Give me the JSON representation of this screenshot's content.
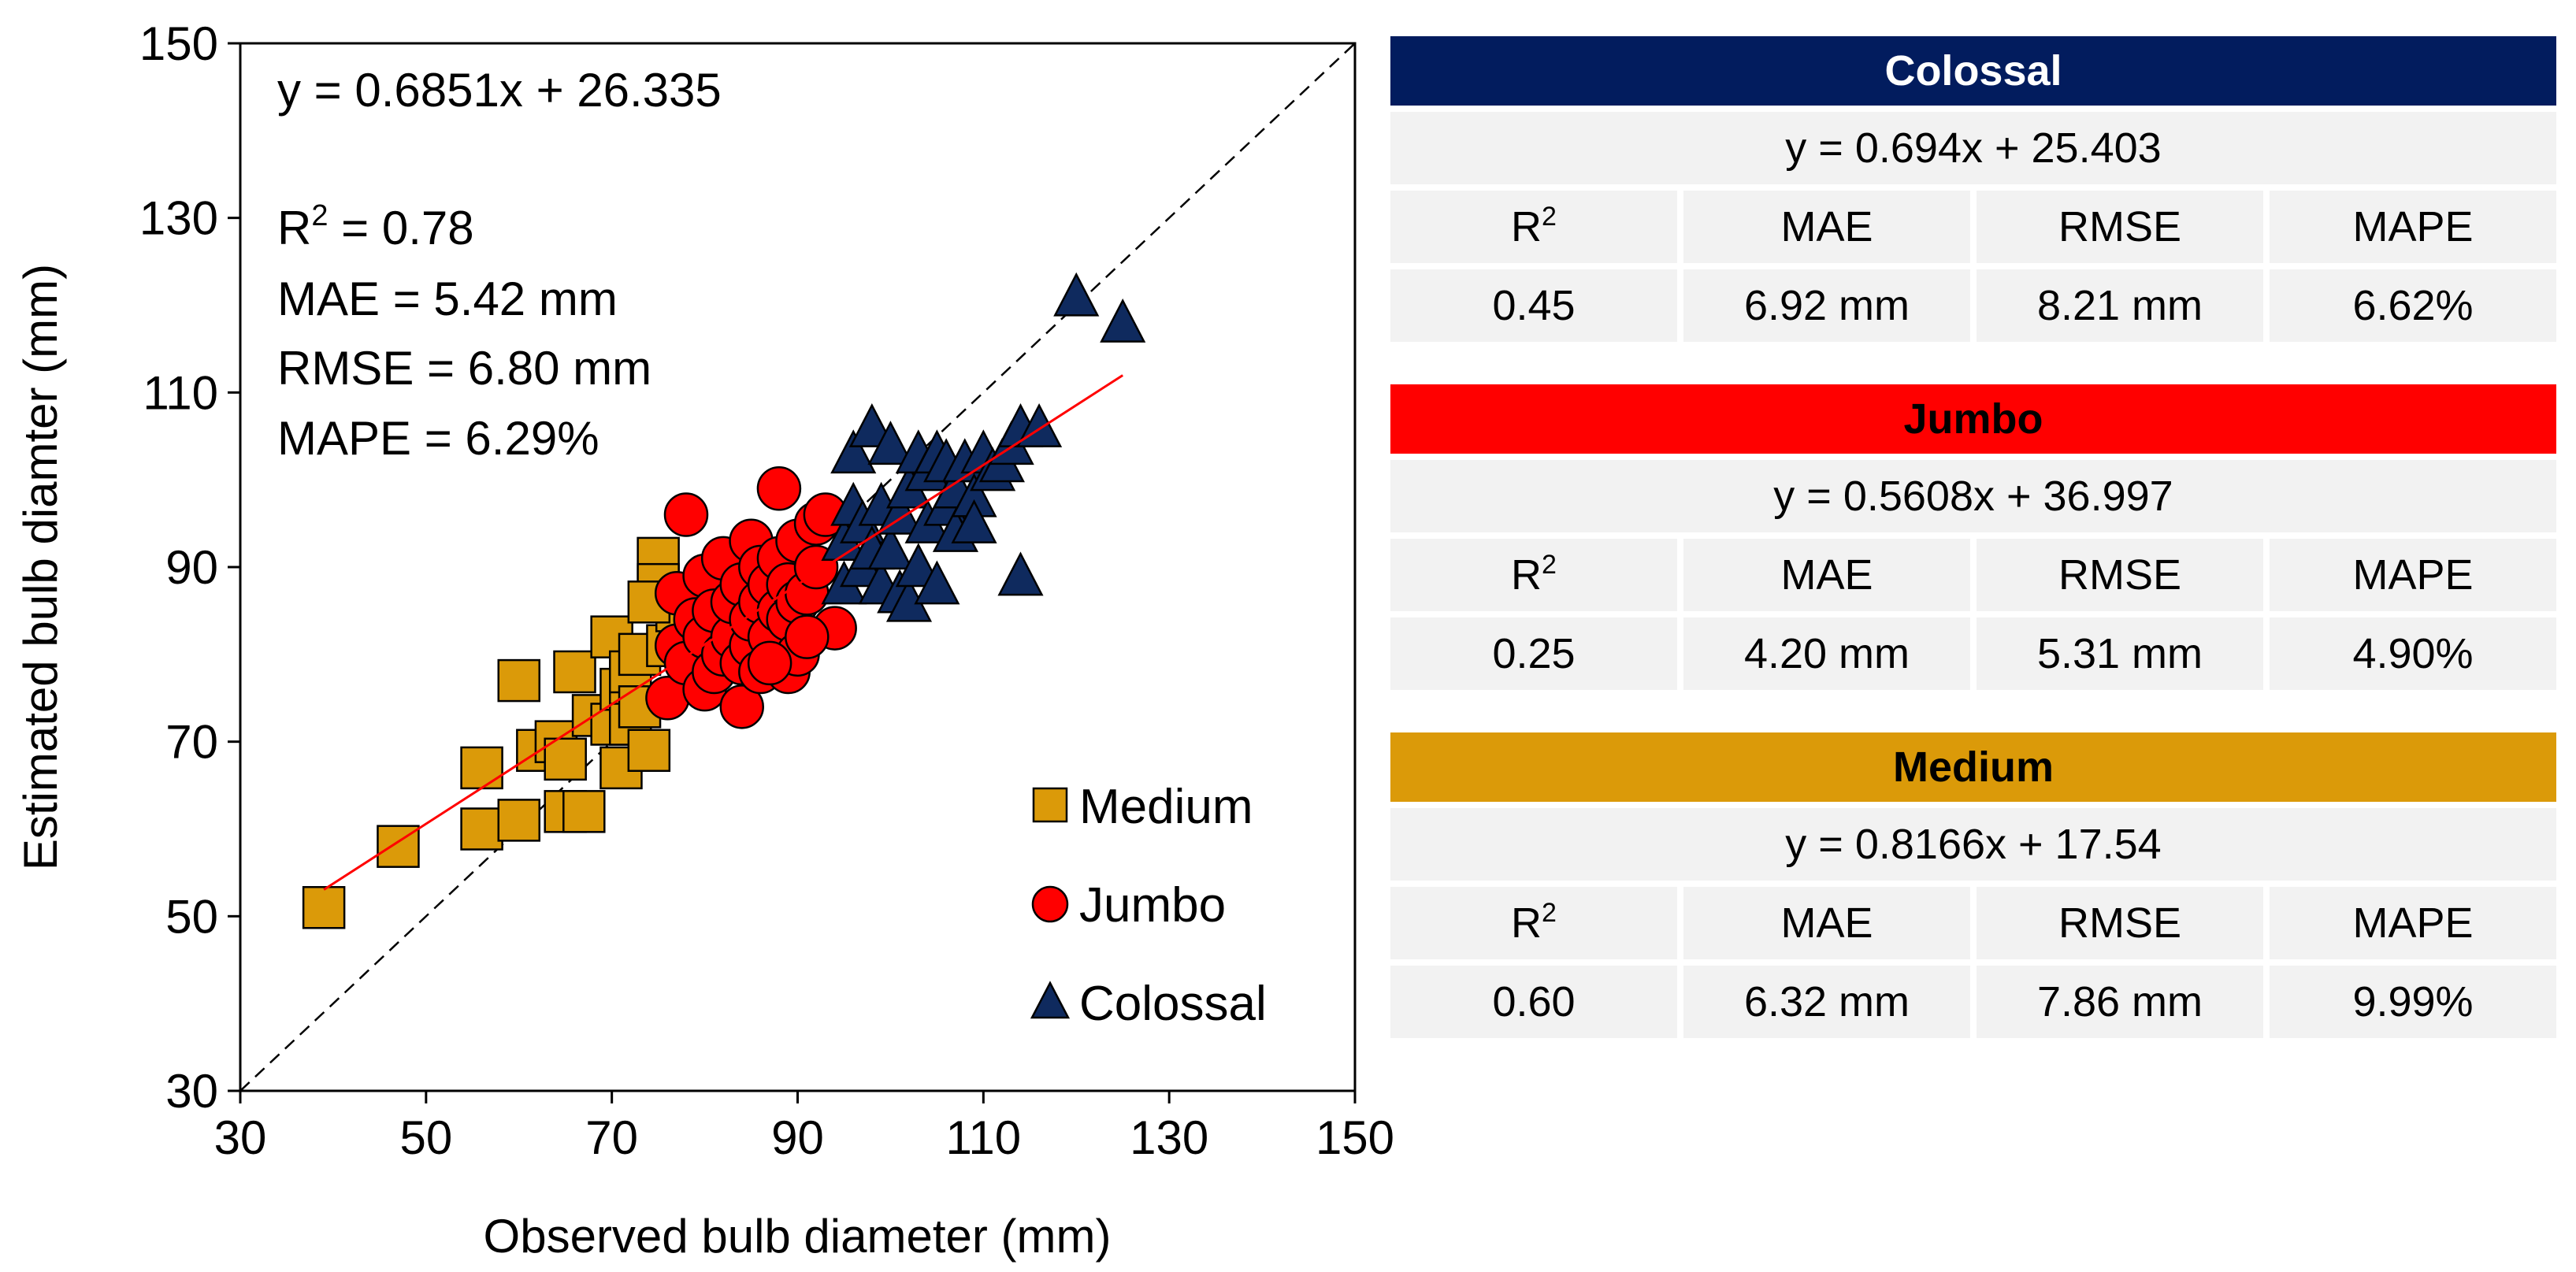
{
  "chart_data": {
    "type": "scatter",
    "xlabel": "Observed bulb diameter (mm)",
    "ylabel": "Estimated bulb diamter (mm)",
    "xlim": [
      30,
      150
    ],
    "ylim": [
      30,
      150
    ],
    "xticks": [
      30,
      50,
      70,
      90,
      110,
      130,
      150
    ],
    "yticks": [
      30,
      50,
      70,
      90,
      110,
      130,
      150
    ],
    "grid": false,
    "legend_position": "bottom-right",
    "overall_annotations": {
      "equation": "y = 0.6851x + 26.335",
      "r2_label": "R",
      "r2_sup": "2",
      "r2_value": " = 0.78",
      "mae": "MAE = 5.42 mm",
      "rmse": "RMSE = 6.80 mm",
      "mape": "MAPE = 6.29%"
    },
    "reference_line": {
      "name": "1:1 line",
      "from": [
        30,
        30
      ],
      "to": [
        150,
        150
      ],
      "style": "dashed"
    },
    "regression_line": {
      "name": "overall fit",
      "slope": 0.6851,
      "intercept": 26.335,
      "x_range": [
        39,
        125
      ]
    },
    "series": [
      {
        "name": "Medium",
        "marker": "square",
        "color": "#DB9A09",
        "points": [
          [
            39,
            51
          ],
          [
            47,
            58
          ],
          [
            56,
            60
          ],
          [
            56,
            67
          ],
          [
            60,
            61
          ],
          [
            60,
            77
          ],
          [
            62,
            69
          ],
          [
            64,
            70
          ],
          [
            65,
            62
          ],
          [
            65,
            68
          ],
          [
            66,
            78
          ],
          [
            67,
            62
          ],
          [
            68,
            73
          ],
          [
            70,
            72
          ],
          [
            70,
            82
          ],
          [
            71,
            67
          ],
          [
            71,
            76
          ],
          [
            72,
            76
          ],
          [
            72,
            72
          ],
          [
            72,
            78
          ],
          [
            73,
            80
          ],
          [
            73,
            74
          ],
          [
            74,
            69
          ],
          [
            75,
            91
          ],
          [
            75,
            88
          ],
          [
            76,
            81
          ],
          [
            77,
            85
          ],
          [
            74,
            86
          ]
        ]
      },
      {
        "name": "Jumbo",
        "marker": "circle",
        "color": "#FF0000",
        "points": [
          [
            76,
            75
          ],
          [
            77,
            81
          ],
          [
            77,
            87
          ],
          [
            78,
            79
          ],
          [
            78,
            96
          ],
          [
            79,
            84
          ],
          [
            80,
            76
          ],
          [
            80,
            82
          ],
          [
            80,
            89
          ],
          [
            81,
            78
          ],
          [
            81,
            85
          ],
          [
            82,
            80
          ],
          [
            82,
            91
          ],
          [
            83,
            82
          ],
          [
            83,
            86
          ],
          [
            84,
            74
          ],
          [
            84,
            79
          ],
          [
            84,
            88
          ],
          [
            85,
            81
          ],
          [
            85,
            84
          ],
          [
            85,
            93
          ],
          [
            86,
            78
          ],
          [
            86,
            86
          ],
          [
            86,
            90
          ],
          [
            87,
            82
          ],
          [
            87,
            88
          ],
          [
            88,
            85
          ],
          [
            88,
            91
          ],
          [
            88,
            99
          ],
          [
            89,
            78
          ],
          [
            89,
            84
          ],
          [
            89,
            88
          ],
          [
            90,
            80
          ],
          [
            90,
            86
          ],
          [
            90,
            93
          ],
          [
            91,
            87
          ],
          [
            92,
            90
          ],
          [
            92,
            95
          ],
          [
            93,
            96
          ],
          [
            94,
            83
          ],
          [
            91,
            82
          ],
          [
            87,
            79
          ]
        ]
      },
      {
        "name": "Colossal",
        "marker": "triangle",
        "color": "#0F2A5E",
        "points": [
          [
            95,
            88
          ],
          [
            95,
            93
          ],
          [
            96,
            97
          ],
          [
            96,
            103
          ],
          [
            97,
            90
          ],
          [
            97,
            95
          ],
          [
            98,
            106
          ],
          [
            98,
            92
          ],
          [
            99,
            88
          ],
          [
            99,
            97
          ],
          [
            100,
            104
          ],
          [
            100,
            92
          ],
          [
            101,
            87
          ],
          [
            101,
            96
          ],
          [
            102,
            86
          ],
          [
            102,
            99
          ],
          [
            103,
            103
          ],
          [
            103,
            90
          ],
          [
            104,
            95
          ],
          [
            104,
            101
          ],
          [
            105,
            88
          ],
          [
            105,
            103
          ],
          [
            106,
            97
          ],
          [
            106,
            102
          ],
          [
            107,
            99
          ],
          [
            107,
            94
          ],
          [
            108,
            102
          ],
          [
            109,
            98
          ],
          [
            109,
            95
          ],
          [
            110,
            103
          ],
          [
            111,
            101
          ],
          [
            112,
            102
          ],
          [
            113,
            104
          ],
          [
            114,
            89
          ],
          [
            114,
            106
          ],
          [
            116,
            106
          ],
          [
            120,
            121
          ],
          [
            125,
            118
          ]
        ]
      }
    ]
  },
  "tables": [
    {
      "title": "Colossal",
      "color": "#021C5E",
      "text_color": "#FFFFFF",
      "equation": "y = 0.694x + 25.403",
      "headers": {
        "r2": "R",
        "r2_sup": "2",
        "mae": "MAE",
        "rmse": "RMSE",
        "mape": "MAPE"
      },
      "values": {
        "r2": "0.45",
        "mae": "6.92 mm",
        "rmse": "8.21 mm",
        "mape": "6.62%"
      }
    },
    {
      "title": "Jumbo",
      "color": "#FF0000",
      "text_color": "#000000",
      "equation": "y = 0.5608x + 36.997",
      "headers": {
        "r2": "R",
        "r2_sup": "2",
        "mae": "MAE",
        "rmse": "RMSE",
        "mape": "MAPE"
      },
      "values": {
        "r2": "0.25",
        "mae": "4.20 mm",
        "rmse": "5.31 mm",
        "mape": "4.90%"
      }
    },
    {
      "title": "Medium",
      "color": "#DB9A09",
      "text_color": "#000000",
      "equation": "y = 0.8166x + 17.54",
      "headers": {
        "r2": "R",
        "r2_sup": "2",
        "mae": "MAE",
        "rmse": "RMSE",
        "mape": "MAPE"
      },
      "values": {
        "r2": "0.60",
        "mae": "6.32 mm",
        "rmse": "7.86 mm",
        "mape": "9.99%"
      }
    }
  ]
}
